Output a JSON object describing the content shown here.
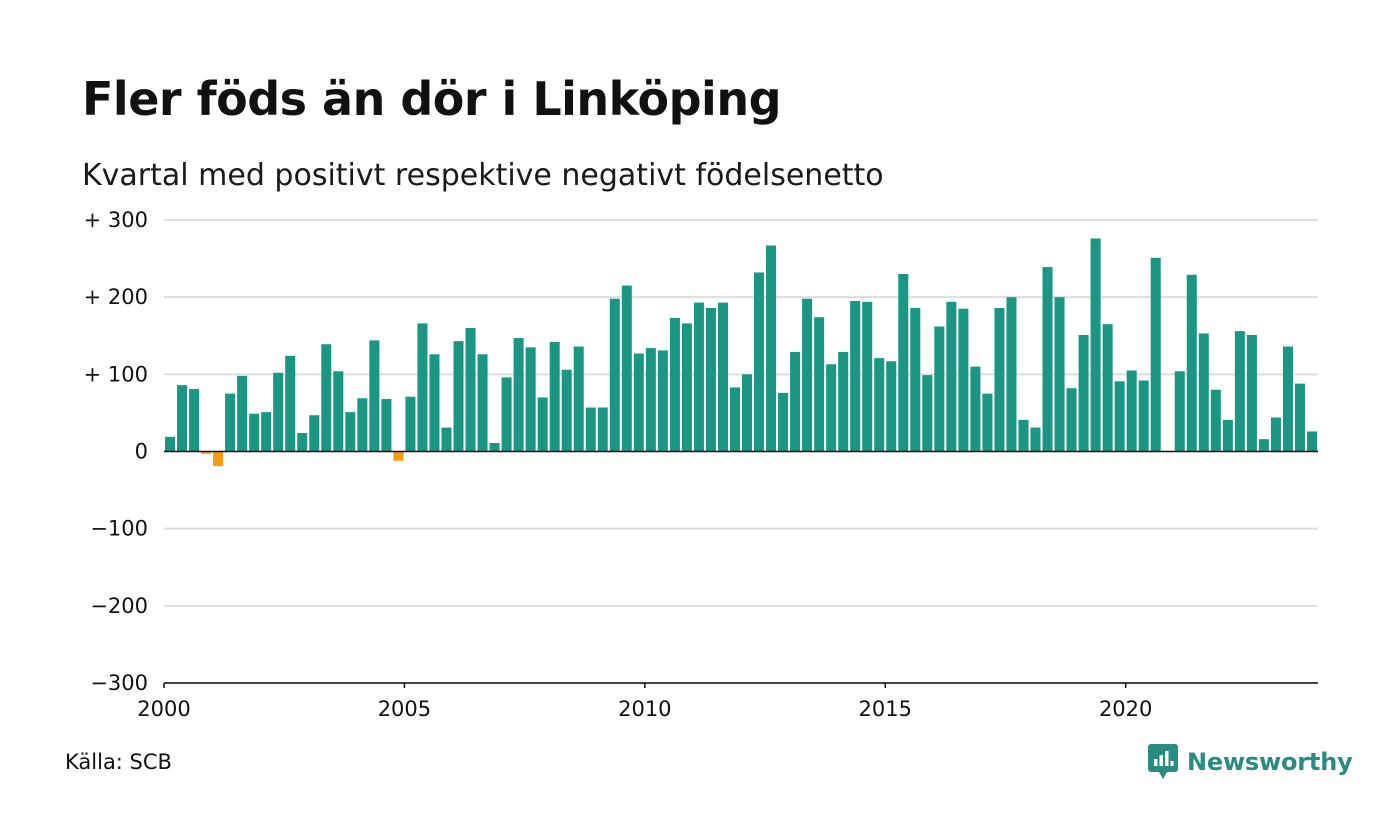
{
  "header": {
    "title": "Fler föds än dör i Linköping",
    "subtitle": "Kvartal med positivt respektive negativt födelsenetto"
  },
  "footer": {
    "source": "Källa: SCB",
    "brand": "Newsworthy",
    "brand_icon": "newsworthy-logo-icon"
  },
  "colors": {
    "positive": "#1a9682",
    "negative": "#f29d12",
    "grid": "#dddddd",
    "baseline": "#111111",
    "brand": "#2a8c80"
  },
  "chart_data": {
    "type": "bar",
    "title": "Fler föds än dör i Linköping",
    "subtitle": "Kvartal med positivt respektive negativt födelsenetto",
    "xlabel": "",
    "ylabel": "",
    "ylim": [
      -300,
      300
    ],
    "xlim": [
      2000,
      2024
    ],
    "grid": true,
    "legend": "none",
    "y_ticks": [
      300,
      200,
      100,
      0,
      -100,
      -200,
      -300
    ],
    "y_tick_labels": [
      "+ 300",
      "+ 200",
      "+ 100",
      "0",
      "−100",
      "−200",
      "−300"
    ],
    "x_ticks": [
      2000,
      2005,
      2010,
      2015,
      2020
    ],
    "x_tick_labels": [
      "2000",
      "2005",
      "2010",
      "2015",
      "2020"
    ],
    "x_start": 2000,
    "periods_per_year": 4,
    "values": [
      19,
      86,
      81,
      -3,
      -19,
      75,
      98,
      49,
      51,
      102,
      124,
      24,
      47,
      139,
      104,
      51,
      69,
      144,
      68,
      -12,
      71,
      166,
      126,
      31,
      143,
      160,
      126,
      11,
      96,
      147,
      135,
      70,
      142,
      106,
      136,
      57,
      57,
      198,
      215,
      127,
      134,
      131,
      173,
      166,
      193,
      186,
      193,
      83,
      100,
      232,
      267,
      76,
      129,
      198,
      174,
      113,
      129,
      195,
      194,
      121,
      117,
      230,
      186,
      99,
      162,
      194,
      185,
      110,
      75,
      186,
      200,
      41,
      31,
      239,
      200,
      82,
      151,
      276,
      165,
      91,
      105,
      92,
      251,
      0,
      104,
      229,
      153,
      80,
      41,
      156,
      151,
      16,
      44,
      136,
      88,
      26
    ]
  }
}
